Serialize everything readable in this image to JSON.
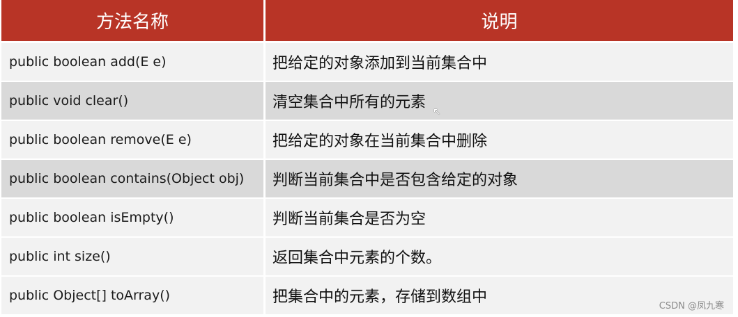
{
  "header": {
    "method": "方法名称",
    "description": "说明"
  },
  "rows": [
    {
      "method": "public boolean add(E e)",
      "description": "把给定的对象添加到当前集合中",
      "shade": "light"
    },
    {
      "method": "public void clear()",
      "description": "清空集合中所有的元素",
      "shade": "dark"
    },
    {
      "method": "public boolean remove(E e)",
      "description": "把给定的对象在当前集合中删除",
      "shade": "light"
    },
    {
      "method": "public boolean contains(Object obj)",
      "description": "判断当前集合中是否包含给定的对象",
      "shade": "dark"
    },
    {
      "method": "public boolean isEmpty()",
      "description": "判断当前集合是否为空",
      "shade": "light"
    },
    {
      "method": "public int size()",
      "description": "返回集合中元素的个数。",
      "shade": "light"
    },
    {
      "method": "public Object[] toArray()",
      "description": "把集合中的元素，存储到数组中",
      "shade": "light"
    }
  ],
  "watermark": "CSDN @凤九寒",
  "colors": {
    "header_bg": "#b83426",
    "row_light": "#f2f2f2",
    "row_dark": "#d9d9d9"
  }
}
